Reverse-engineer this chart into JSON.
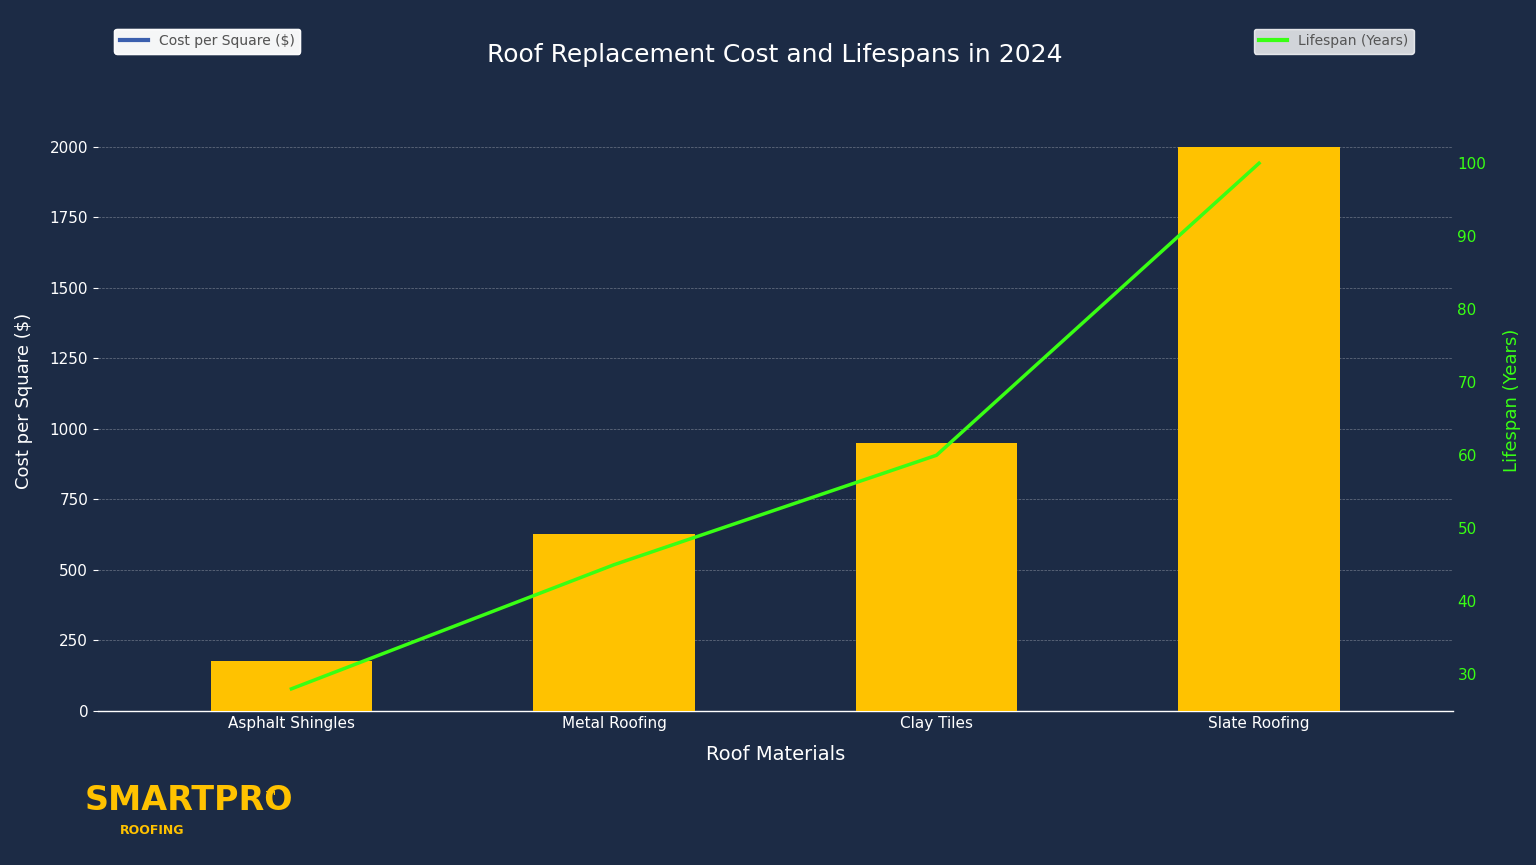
{
  "title": "Roof Replacement Cost and Lifespans in 2024",
  "categories": [
    "Asphalt Shingles",
    "Metal Roofing",
    "Clay Tiles",
    "Slate Roofing"
  ],
  "cost_values": [
    175,
    625,
    950,
    2000
  ],
  "lifespan_values": [
    28,
    45,
    60,
    100
  ],
  "bar_color": "#FFC200",
  "line_color": "#39FF14",
  "background_color": "#1C2B45",
  "text_color": "#FFFFFF",
  "grid_color": "#FFFFFF",
  "xlabel": "Roof Materials",
  "ylabel_left": "Cost per Square ($)",
  "ylabel_right": "Lifespan (Years)",
  "ylim_left": [
    0,
    2200
  ],
  "ylim_right": [
    25,
    110
  ],
  "yticks_left": [
    0,
    250,
    500,
    750,
    1000,
    1250,
    1500,
    1750,
    2000
  ],
  "yticks_right": [
    30,
    40,
    50,
    60,
    70,
    80,
    90,
    100
  ],
  "legend1_label": "Cost per Square ($)",
  "legend2_label": "Lifespan (Years)",
  "legend1_color": "#3B5FAE",
  "logo_text_main": "SMARTPRO",
  "logo_text_sup": "™",
  "logo_text_sub": "ROOFING",
  "logo_color": "#FFC200",
  "legend_label_color": "#555555"
}
